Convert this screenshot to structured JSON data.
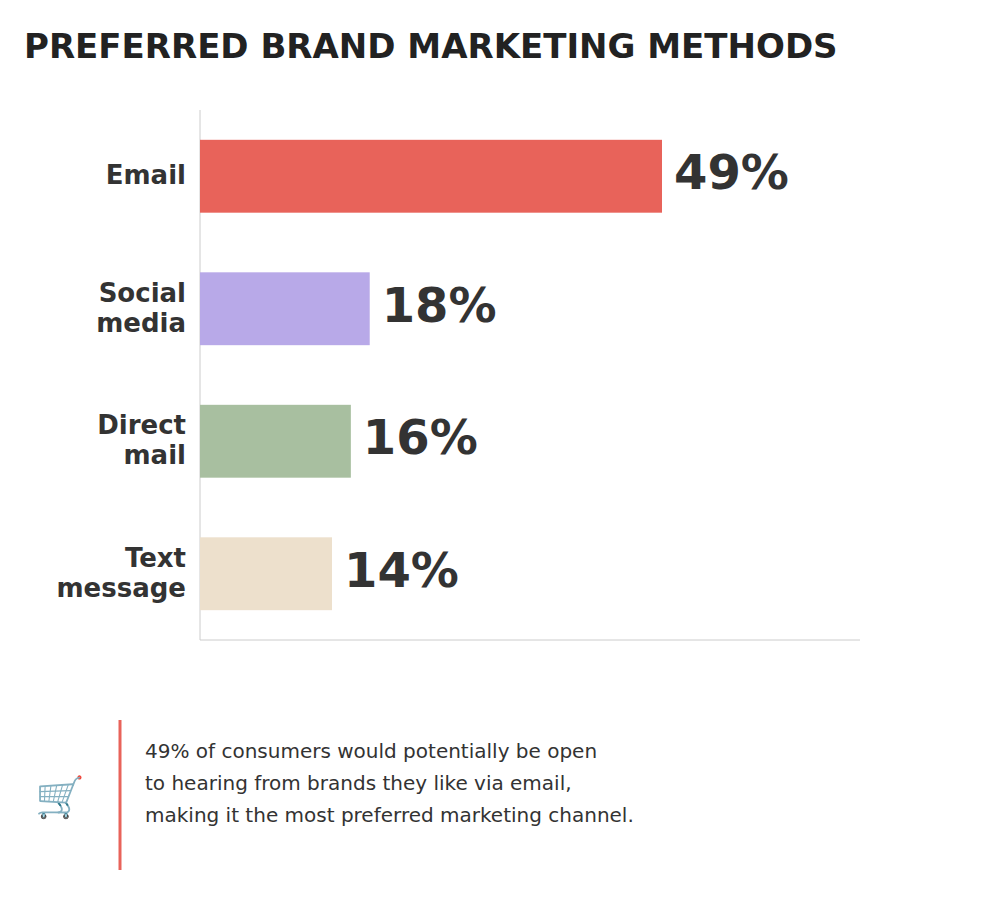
{
  "chart_data": {
    "type": "bar",
    "orientation": "horizontal",
    "title": "PREFERRED BRAND MARKETING METHODS",
    "categories": [
      "Email",
      "Social\nmedia",
      "Direct\nmail",
      "Text\nmessage"
    ],
    "values": [
      49,
      18,
      16,
      14
    ],
    "value_labels": [
      "49%",
      "18%",
      "16%",
      "14%"
    ],
    "colors": [
      "#E8635A",
      "#B8A9E8",
      "#A8BFA0",
      "#EDE0CC"
    ],
    "xlim": [
      0,
      70
    ],
    "data_labels": true,
    "grid": false,
    "tick_labels": false,
    "annotations": [
      "🛒",
      "49% of consumers would potentially be open\nto hearing from brands they like via email,\nmaking it the most preferred marketing channel."
    ]
  }
}
